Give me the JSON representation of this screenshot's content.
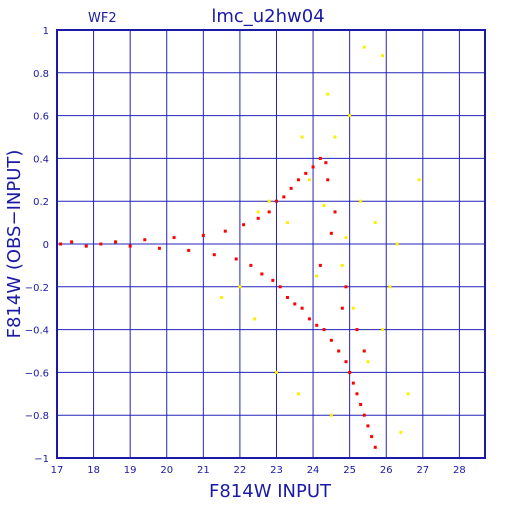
{
  "chart_data": {
    "type": "scatter",
    "title": "lmc_u2hw04",
    "annotation": "WF2",
    "xlabel": "F814W INPUT",
    "ylabel": "F814W (OBS−INPUT)",
    "xlim": [
      17,
      28.7
    ],
    "ylim": [
      -1,
      1
    ],
    "x_ticks": [
      "17",
      "18",
      "19",
      "20",
      "21",
      "22",
      "23",
      "24",
      "25",
      "26",
      "27",
      "28"
    ],
    "y_ticks": [
      "1",
      "0.8",
      "0.6",
      "0.4",
      "0.2",
      "0",
      "−0.2",
      "−0.4",
      "−0.6",
      "−0.8",
      "−1"
    ],
    "grid": true,
    "series": [
      {
        "color": "#ff0000",
        "points": [
          [
            17.1,
            0.0
          ],
          [
            17.4,
            0.01
          ],
          [
            17.8,
            -0.01
          ],
          [
            18.2,
            0.0
          ],
          [
            18.6,
            0.01
          ],
          [
            19.0,
            -0.01
          ],
          [
            19.4,
            0.02
          ],
          [
            19.8,
            -0.02
          ],
          [
            20.2,
            0.03
          ],
          [
            20.6,
            -0.03
          ],
          [
            21.0,
            0.04
          ],
          [
            21.3,
            -0.05
          ],
          [
            21.6,
            0.06
          ],
          [
            21.9,
            -0.07
          ],
          [
            22.1,
            0.09
          ],
          [
            22.3,
            -0.1
          ],
          [
            22.5,
            0.12
          ],
          [
            22.6,
            -0.14
          ],
          [
            22.8,
            0.15
          ],
          [
            22.9,
            -0.17
          ],
          [
            23.0,
            0.2
          ],
          [
            23.1,
            -0.2
          ],
          [
            23.2,
            0.22
          ],
          [
            23.3,
            -0.25
          ],
          [
            23.4,
            0.26
          ],
          [
            23.5,
            -0.28
          ],
          [
            23.6,
            0.3
          ],
          [
            23.7,
            -0.3
          ],
          [
            23.8,
            0.33
          ],
          [
            23.9,
            -0.35
          ],
          [
            24.0,
            0.36
          ],
          [
            24.1,
            -0.38
          ],
          [
            24.2,
            0.4
          ],
          [
            24.3,
            -0.4
          ],
          [
            24.35,
            0.38
          ],
          [
            24.4,
            0.3
          ],
          [
            24.5,
            -0.45
          ],
          [
            24.6,
            0.15
          ],
          [
            24.7,
            -0.5
          ],
          [
            24.8,
            -0.3
          ],
          [
            24.9,
            -0.55
          ],
          [
            25.0,
            -0.6
          ],
          [
            25.1,
            -0.65
          ],
          [
            25.2,
            -0.7
          ],
          [
            25.3,
            -0.75
          ],
          [
            25.4,
            -0.8
          ],
          [
            25.5,
            -0.85
          ],
          [
            25.6,
            -0.9
          ],
          [
            25.7,
            -0.95
          ],
          [
            25.4,
            -0.5
          ],
          [
            25.2,
            -0.4
          ],
          [
            24.9,
            -0.2
          ],
          [
            24.5,
            0.05
          ],
          [
            24.2,
            -0.1
          ]
        ]
      },
      {
        "color": "#ffee00",
        "points": [
          [
            21.5,
            -0.25
          ],
          [
            22.0,
            -0.2
          ],
          [
            22.4,
            -0.35
          ],
          [
            22.8,
            0.2
          ],
          [
            23.0,
            -0.6
          ],
          [
            23.3,
            0.1
          ],
          [
            23.6,
            -0.7
          ],
          [
            23.9,
            0.3
          ],
          [
            24.1,
            -0.15
          ],
          [
            24.3,
            0.18
          ],
          [
            24.5,
            -0.8
          ],
          [
            24.6,
            0.5
          ],
          [
            24.8,
            -0.1
          ],
          [
            25.0,
            0.6
          ],
          [
            25.1,
            -0.3
          ],
          [
            25.3,
            0.2
          ],
          [
            25.5,
            -0.55
          ],
          [
            25.7,
            0.1
          ],
          [
            25.9,
            -0.4
          ],
          [
            26.1,
            -0.2
          ],
          [
            26.3,
            0.0
          ],
          [
            26.6,
            -0.7
          ],
          [
            26.9,
            0.3
          ],
          [
            25.4,
            0.92
          ],
          [
            25.9,
            0.88
          ],
          [
            24.4,
            0.7
          ],
          [
            23.7,
            0.5
          ],
          [
            22.5,
            0.15
          ],
          [
            26.4,
            -0.88
          ],
          [
            24.9,
            0.03
          ]
        ]
      }
    ]
  }
}
